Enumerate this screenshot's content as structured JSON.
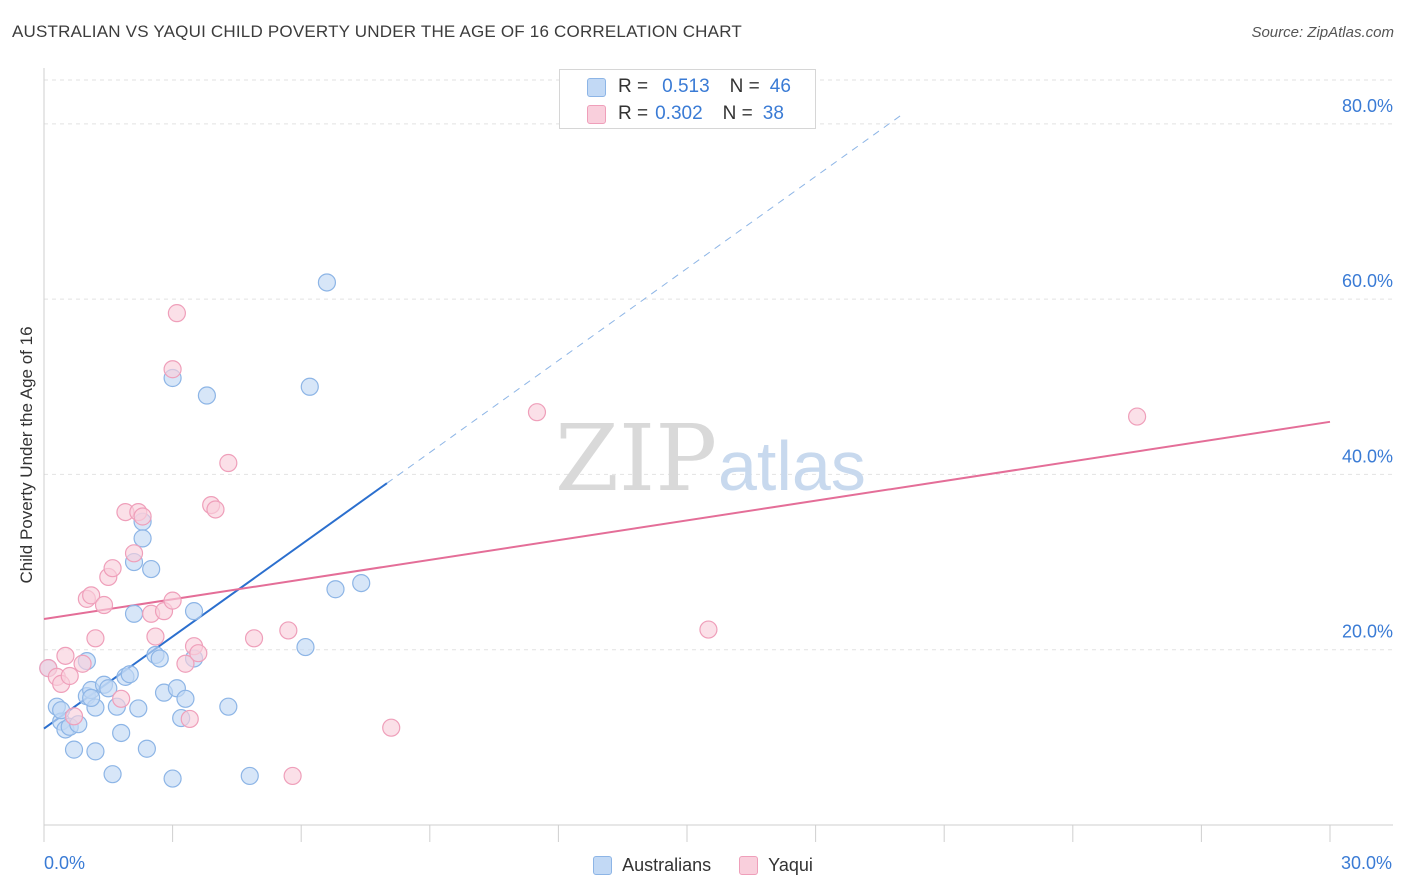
{
  "header": {
    "title": "AUSTRALIAN VS YAQUI CHILD POVERTY UNDER THE AGE OF 16 CORRELATION CHART",
    "source": "Source: ZipAtlas.com"
  },
  "legend": {
    "rows": [
      {
        "r_label": "R =",
        "r_value": "0.513",
        "n_label": "N =",
        "n_value": "46"
      },
      {
        "r_label": "R =",
        "r_value": "0.302",
        "n_label": "N =",
        "n_value": "38"
      }
    ]
  },
  "watermark": {
    "part1": "ZIP",
    "part2": "atlas"
  },
  "colors": {
    "australians_fill": "#c2d9f5",
    "australians_stroke": "#8db5e6",
    "australians_line": "#2b6fce",
    "yaqui_fill": "#f9cfdc",
    "yaqui_stroke": "#ef9fba",
    "yaqui_line": "#e46e98",
    "tick_label": "#3a7bd5",
    "grid": "#e2e2e2"
  },
  "chart_data": {
    "type": "scatter",
    "title": "AUSTRALIAN VS YAQUI CHILD POVERTY UNDER THE AGE OF 16 CORRELATION CHART",
    "xlabel": "",
    "ylabel": "Child Poverty Under the Age of 16",
    "xlim": [
      0,
      30
    ],
    "ylim": [
      0,
      85
    ],
    "x_tick_labels": [
      {
        "value": 0,
        "label": "0.0%"
      },
      {
        "value": 30,
        "label": "30.0%"
      }
    ],
    "y_tick_labels": [
      {
        "value": 20,
        "label": "20.0%"
      },
      {
        "value": 40,
        "label": "40.0%"
      },
      {
        "value": 60,
        "label": "60.0%"
      },
      {
        "value": 80,
        "label": "80.0%"
      }
    ],
    "x_minor_ticks": [
      0,
      3,
      6,
      9,
      12,
      15,
      18,
      21,
      24,
      27,
      30
    ],
    "grid": true,
    "legend_position": "top-center",
    "series": [
      {
        "name": "Australians",
        "R": 0.513,
        "N": 46,
        "points": [
          [
            0.1,
            17.9
          ],
          [
            0.3,
            13.5
          ],
          [
            0.4,
            11.8
          ],
          [
            0.4,
            13.1
          ],
          [
            0.5,
            10.9
          ],
          [
            0.6,
            11.2
          ],
          [
            0.7,
            8.6
          ],
          [
            1.0,
            18.7
          ],
          [
            1.0,
            14.7
          ],
          [
            1.1,
            15.4
          ],
          [
            1.2,
            13.4
          ],
          [
            1.2,
            8.4
          ],
          [
            1.4,
            16.0
          ],
          [
            1.5,
            15.6
          ],
          [
            1.6,
            5.8
          ],
          [
            1.7,
            13.5
          ],
          [
            1.8,
            10.5
          ],
          [
            1.9,
            16.9
          ],
          [
            2.0,
            17.2
          ],
          [
            2.1,
            30.0
          ],
          [
            2.1,
            24.1
          ],
          [
            2.2,
            13.3
          ],
          [
            2.3,
            34.6
          ],
          [
            2.3,
            32.7
          ],
          [
            2.4,
            8.7
          ],
          [
            2.5,
            29.2
          ],
          [
            2.6,
            19.4
          ],
          [
            2.7,
            19.0
          ],
          [
            2.8,
            15.1
          ],
          [
            3.0,
            5.3
          ],
          [
            3.0,
            51.0
          ],
          [
            3.1,
            15.6
          ],
          [
            3.2,
            12.2
          ],
          [
            3.3,
            14.4
          ],
          [
            3.5,
            19.0
          ],
          [
            3.5,
            24.4
          ],
          [
            3.8,
            49.0
          ],
          [
            4.3,
            13.5
          ],
          [
            4.8,
            5.6
          ],
          [
            6.1,
            20.3
          ],
          [
            6.2,
            50.0
          ],
          [
            6.6,
            61.9
          ],
          [
            6.8,
            26.9
          ],
          [
            7.4,
            27.6
          ],
          [
            1.1,
            14.5
          ],
          [
            0.8,
            11.5
          ]
        ],
        "trendline": {
          "x0": 0,
          "y0": 11.0,
          "x1": 8,
          "y1": 39.0,
          "dashed_to_x": 20,
          "dashed_to_y": 81.0
        }
      },
      {
        "name": "Yaqui",
        "R": 0.302,
        "N": 38,
        "points": [
          [
            0.1,
            17.9
          ],
          [
            0.3,
            16.9
          ],
          [
            0.4,
            16.1
          ],
          [
            0.5,
            19.3
          ],
          [
            0.6,
            17.0
          ],
          [
            0.7,
            12.4
          ],
          [
            0.9,
            18.4
          ],
          [
            1.0,
            25.8
          ],
          [
            1.1,
            26.2
          ],
          [
            1.2,
            21.3
          ],
          [
            1.4,
            25.1
          ],
          [
            1.5,
            28.3
          ],
          [
            1.6,
            29.3
          ],
          [
            1.8,
            14.4
          ],
          [
            1.9,
            35.7
          ],
          [
            2.1,
            31.0
          ],
          [
            2.2,
            35.7
          ],
          [
            2.3,
            35.2
          ],
          [
            2.5,
            24.1
          ],
          [
            2.6,
            21.5
          ],
          [
            2.8,
            24.4
          ],
          [
            3.0,
            52.0
          ],
          [
            3.0,
            25.6
          ],
          [
            3.1,
            58.4
          ],
          [
            3.3,
            18.4
          ],
          [
            3.4,
            12.1
          ],
          [
            3.5,
            20.4
          ],
          [
            3.6,
            19.6
          ],
          [
            3.9,
            36.5
          ],
          [
            4.0,
            36.0
          ],
          [
            4.3,
            41.3
          ],
          [
            4.9,
            21.3
          ],
          [
            5.7,
            22.2
          ],
          [
            5.8,
            5.6
          ],
          [
            8.1,
            11.1
          ],
          [
            11.5,
            47.1
          ],
          [
            15.5,
            22.3
          ],
          [
            25.5,
            46.6
          ]
        ],
        "trendline": {
          "x0": 0,
          "y0": 23.5,
          "x1": 30,
          "y1": 46.0
        }
      }
    ]
  }
}
